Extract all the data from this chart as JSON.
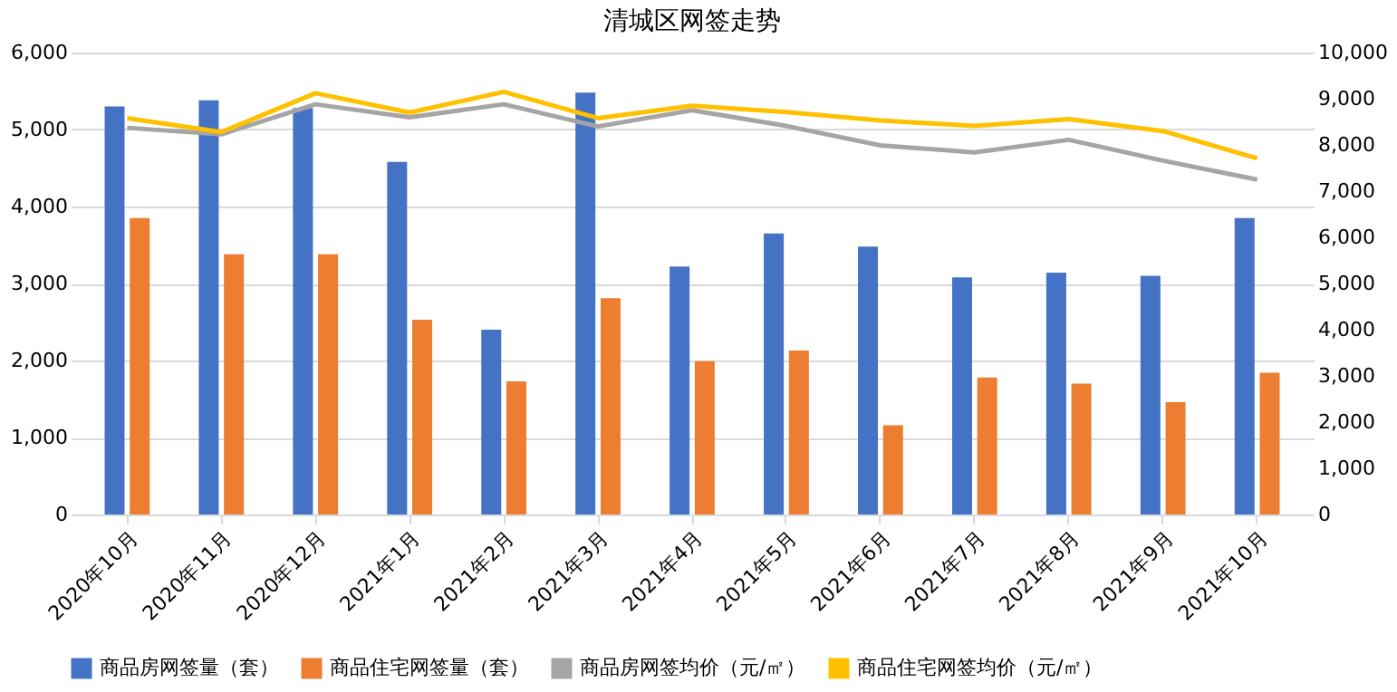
{
  "chart_data": {
    "type": "bar",
    "title": "清城区网签走势",
    "categories": [
      "2020年10月",
      "2020年11月",
      "2020年12月",
      "2021年1月",
      "2021年2月",
      "2021年3月",
      "2021年4月",
      "2021年5月",
      "2021年6月",
      "2021年7月",
      "2021年8月",
      "2021年9月",
      "2021年10月"
    ],
    "series": [
      {
        "name": "商品房网签量（套）",
        "color": "#4472c4",
        "values": [
          5300,
          5380,
          5280,
          4580,
          2400,
          5480,
          3220,
          3650,
          3480,
          3080,
          3140,
          3100,
          3850
        ]
      },
      {
        "name": "商品住宅网签量（套）",
        "color": "#ed7d31",
        "values": [
          3850,
          3380,
          3380,
          2530,
          1730,
          2810,
          1990,
          2130,
          1160,
          1780,
          1700,
          1460,
          1840
        ]
      },
      {
        "name": "商品房网签均价（元/㎡）",
        "type": "line",
        "axis": "y2",
        "color": "#a5a5a5",
        "values": [
          8370,
          8230,
          8880,
          8600,
          8880,
          8400,
          8750,
          8410,
          7990,
          7840,
          8110,
          7660,
          7250
        ]
      },
      {
        "name": "商品住宅网签均价（元/㎡）",
        "type": "line",
        "axis": "y2",
        "color": "#ffc000",
        "values": [
          8580,
          8280,
          9120,
          8700,
          9150,
          8580,
          8850,
          8710,
          8530,
          8410,
          8560,
          8300,
          7710
        ]
      }
    ],
    "ylim": [
      0,
      6000
    ],
    "yticks": [
      {
        "value": 0,
        "label": "0"
      },
      {
        "value": 1000,
        "label": "1,000"
      },
      {
        "value": 2000,
        "label": "2,000"
      },
      {
        "value": 3000,
        "label": "3,000"
      },
      {
        "value": 4000,
        "label": "4,000"
      },
      {
        "value": 5000,
        "label": "5,000"
      },
      {
        "value": 6000,
        "label": "6,000"
      }
    ],
    "y2lim": [
      0,
      10000
    ],
    "y2ticks": [
      {
        "value": 0,
        "label": "0"
      },
      {
        "value": 1000,
        "label": "1,000"
      },
      {
        "value": 2000,
        "label": "2,000"
      },
      {
        "value": 3000,
        "label": "3,000"
      },
      {
        "value": 4000,
        "label": "4,000"
      },
      {
        "value": 5000,
        "label": "5,000"
      },
      {
        "value": 6000,
        "label": "6,000"
      },
      {
        "value": 7000,
        "label": "7,000"
      },
      {
        "value": 8000,
        "label": "8,000"
      },
      {
        "value": 9000,
        "label": "9,000"
      },
      {
        "value": 10000,
        "label": "10,000"
      }
    ],
    "grid": "y",
    "legend": "bottom"
  }
}
